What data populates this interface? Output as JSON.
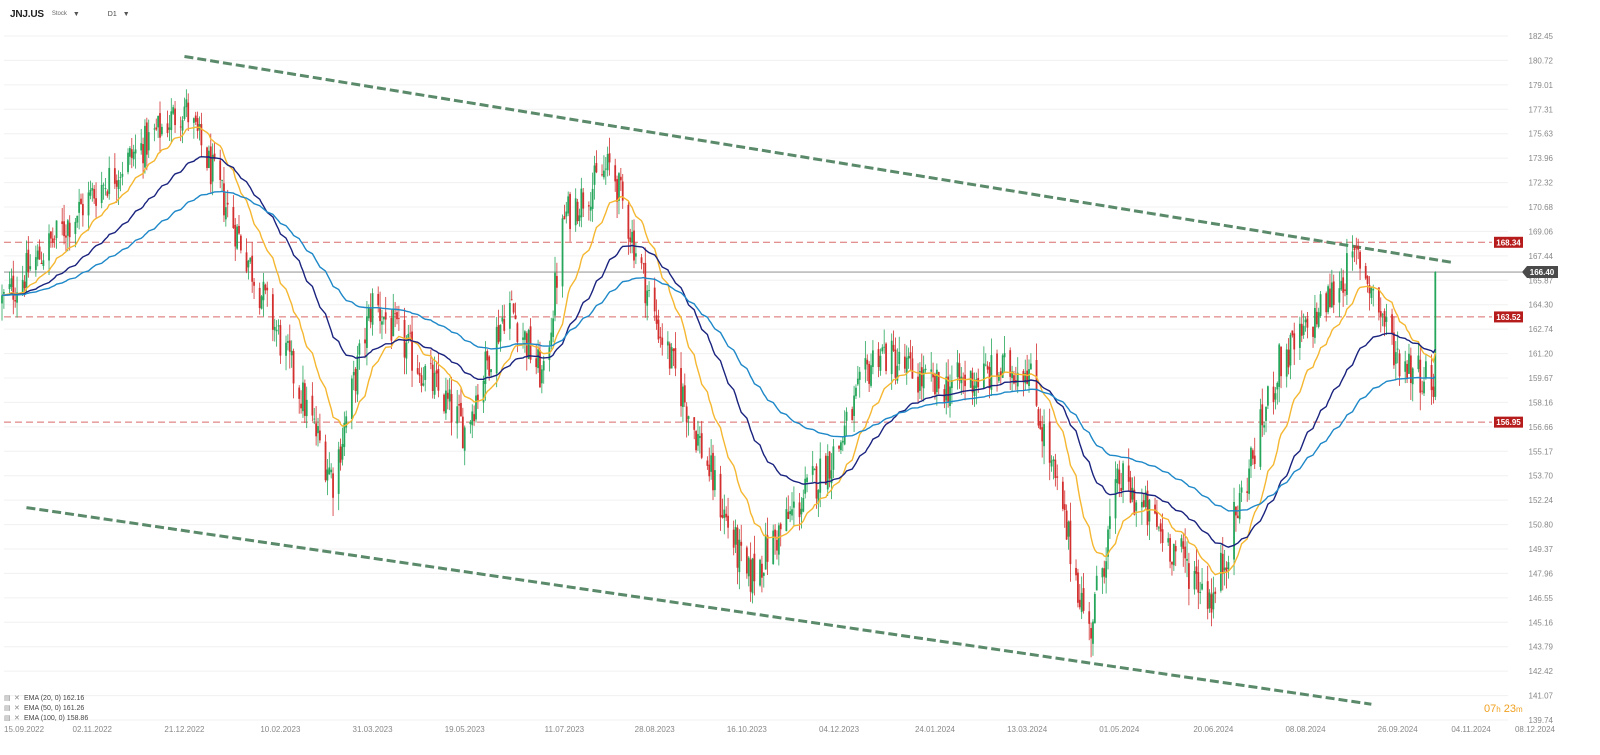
{
  "header": {
    "symbol": "JNJ.US",
    "symbol_type": "Stock",
    "timeframe": "D1"
  },
  "countdown": {
    "hours": "07",
    "h_unit": "h",
    "minutes": "23",
    "m_unit": "m"
  },
  "legend": [
    {
      "label": "EMA (20, 0) 162.16"
    },
    {
      "label": "EMA (50, 0) 161.26"
    },
    {
      "label": "EMA (100, 0) 158.86"
    }
  ],
  "colors": {
    "up_candle": "#26a65b",
    "down_candle": "#d32f2f",
    "ema20": "#f5b731",
    "ema50": "#1a237e",
    "ema100": "#1e88c8",
    "trend_channel": "#5a8a6a",
    "resistance": "#c62828",
    "current_price": "#555555"
  },
  "chart_data": {
    "type": "candlestick",
    "symbol": "JNJ.US",
    "timeframe": "D1",
    "y_ticks": [
      "182.45",
      "180.72",
      "179.01",
      "177.31",
      "175.63",
      "173.96",
      "172.32",
      "170.68",
      "169.06",
      "167.44",
      "165.87",
      "164.30",
      "162.74",
      "161.20",
      "159.67",
      "158.16",
      "156.66",
      "155.17",
      "153.70",
      "152.24",
      "150.80",
      "149.37",
      "147.96",
      "146.55",
      "145.16",
      "143.79",
      "142.42",
      "141.07",
      "139.74"
    ],
    "x_ticks": [
      "15.09.2022",
      "02.11.2022",
      "21.12.2022",
      "10.02.2023",
      "31.03.2023",
      "19.05.2023",
      "11.07.2023",
      "28.08.2023",
      "16.10.2023",
      "04.12.2023",
      "24.01.2024",
      "13.03.2024",
      "01.05.2024",
      "20.06.2024",
      "08.08.2024",
      "26.09.2024",
      "04.11.2024",
      "08.12.2024"
    ],
    "current_price": {
      "value": 166.4,
      "label": "166.40"
    },
    "levels": [
      {
        "value": 168.34,
        "label": "168.34"
      },
      {
        "value": 163.52,
        "label": "163.52"
      },
      {
        "value": 156.95,
        "label": "156.95"
      }
    ],
    "price_path": [
      {
        "date": "15.09.2022",
        "close": 164.5
      },
      {
        "date": "02.11.2022",
        "close": 171.5
      },
      {
        "date": "21.12.2022",
        "close": 177.5
      },
      {
        "date": "10.02.2023",
        "close": 162.0
      },
      {
        "date": "10.03.2023",
        "close": 153.5
      },
      {
        "date": "31.03.2023",
        "close": 164.5
      },
      {
        "date": "19.05.2023",
        "close": 156.5
      },
      {
        "date": "11.06.2023",
        "close": 164.5
      },
      {
        "date": "30.06.2023",
        "close": 159.5
      },
      {
        "date": "11.07.2023",
        "close": 170.0
      },
      {
        "date": "05.08.2023",
        "close": 173.5
      },
      {
        "date": "28.08.2023",
        "close": 163.5
      },
      {
        "date": "16.10.2023",
        "close": 147.5
      },
      {
        "date": "04.12.2023",
        "close": 155.5
      },
      {
        "date": "24.12.2023",
        "close": 161.5
      },
      {
        "date": "24.01.2024",
        "close": 159.0
      },
      {
        "date": "13.03.2024",
        "close": 160.5
      },
      {
        "date": "15.04.2024",
        "close": 144.5
      },
      {
        "date": "01.05.2024",
        "close": 153.5
      },
      {
        "date": "20.06.2024",
        "close": 146.5
      },
      {
        "date": "25.07.2024",
        "close": 160.5
      },
      {
        "date": "08.08.2024",
        "close": 162.5
      },
      {
        "date": "05.09.2024",
        "close": 167.5
      },
      {
        "date": "26.09.2024",
        "close": 161.0
      },
      {
        "date": "15.10.2024",
        "close": 159.5
      },
      {
        "date": "16.10.2024",
        "close": 166.4
      }
    ],
    "trend_upper": [
      {
        "date": "21.12.2022",
        "value": 181.0
      },
      {
        "date": "26.10.2024",
        "value": 167.0
      }
    ],
    "trend_lower": [
      {
        "date": "28.09.2022",
        "value": 151.8
      },
      {
        "date": "12.09.2024",
        "value": 140.6
      }
    ],
    "ema": [
      {
        "name": "EMA (20, 0)",
        "period": 20,
        "value": 162.16
      },
      {
        "name": "EMA (50, 0)",
        "period": 50,
        "value": 161.26
      },
      {
        "name": "EMA (100, 0)",
        "period": 100,
        "value": 158.86
      }
    ]
  }
}
